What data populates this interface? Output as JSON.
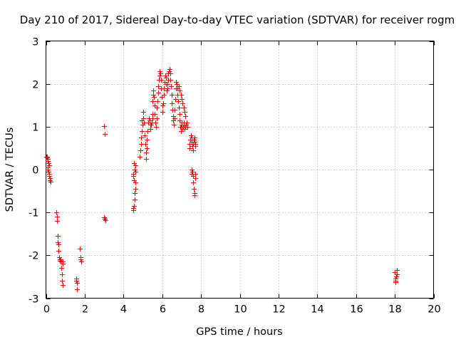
{
  "chart_data": {
    "type": "scatter",
    "title": "Day 210 of 2017, Sidereal Day-to-day VTEC variation (SDTVAR) for receiver rogm",
    "xlabel": "GPS time / hours",
    "ylabel": "SDTVAR / TECUs",
    "xlim": [
      0,
      20
    ],
    "ylim": [
      -3,
      3
    ],
    "x_ticks": [
      0,
      2,
      4,
      6,
      8,
      10,
      12,
      14,
      16,
      18,
      20
    ],
    "x_tick_labels": [
      "0",
      "2",
      "4",
      "6",
      "8",
      "10",
      "12",
      "14",
      "16",
      "18",
      "20"
    ],
    "y_ticks": [
      -3,
      -2,
      -1,
      0,
      1,
      2,
      3
    ],
    "y_tick_labels": [
      "-3",
      "-2",
      "-1",
      "0",
      "1",
      "2",
      "3"
    ],
    "grid": true,
    "marker": "+",
    "series": [
      {
        "name": "SDTVAR",
        "color": "#ff0000",
        "points": [
          [
            0.0,
            0.3
          ],
          [
            0.05,
            0.3
          ],
          [
            0.08,
            0.25
          ],
          [
            0.1,
            0.2
          ],
          [
            0.12,
            0.15
          ],
          [
            0.15,
            0.1
          ],
          [
            0.08,
            0.05
          ],
          [
            0.1,
            0.0
          ],
          [
            0.12,
            -0.05
          ],
          [
            0.15,
            -0.1
          ],
          [
            0.18,
            -0.15
          ],
          [
            0.2,
            -0.2
          ],
          [
            0.22,
            -0.25
          ],
          [
            0.25,
            -0.28
          ],
          [
            0.05,
            0.28
          ],
          [
            0.18,
            0.1
          ],
          [
            0.55,
            -1.0
          ],
          [
            0.57,
            -1.1
          ],
          [
            0.58,
            -1.2
          ],
          [
            0.6,
            -1.55
          ],
          [
            0.62,
            -1.7
          ],
          [
            0.64,
            -1.75
          ],
          [
            0.66,
            -1.9
          ],
          [
            0.68,
            -2.05
          ],
          [
            0.7,
            -2.1
          ],
          [
            0.72,
            -2.12
          ],
          [
            0.75,
            -2.1
          ],
          [
            0.78,
            -2.15
          ],
          [
            0.8,
            -2.3
          ],
          [
            0.82,
            -2.45
          ],
          [
            0.84,
            -2.6
          ],
          [
            0.86,
            -2.7
          ],
          [
            0.88,
            -2.2
          ],
          [
            0.85,
            -2.15
          ],
          [
            1.55,
            -2.55
          ],
          [
            1.57,
            -2.6
          ],
          [
            1.6,
            -2.65
          ],
          [
            1.6,
            -2.8
          ],
          [
            1.75,
            -1.85
          ],
          [
            1.78,
            -2.05
          ],
          [
            1.8,
            -2.1
          ],
          [
            1.82,
            -2.15
          ],
          [
            3.0,
            1.02
          ],
          [
            3.02,
            0.83
          ],
          [
            3.0,
            -1.12
          ],
          [
            3.04,
            -1.15
          ],
          [
            3.06,
            -1.18
          ],
          [
            4.5,
            -0.9
          ],
          [
            4.52,
            -0.95
          ],
          [
            4.54,
            -0.85
          ],
          [
            4.56,
            -0.7
          ],
          [
            4.58,
            -0.55
          ],
          [
            4.6,
            -0.45
          ],
          [
            4.55,
            -0.25
          ],
          [
            4.52,
            -0.15
          ],
          [
            4.5,
            -0.1
          ],
          [
            4.58,
            0.0
          ],
          [
            4.6,
            0.1
          ],
          [
            4.55,
            0.15
          ],
          [
            4.62,
            -0.05
          ],
          [
            4.6,
            -0.3
          ],
          [
            4.85,
            0.3
          ],
          [
            4.88,
            0.45
          ],
          [
            4.9,
            0.6
          ],
          [
            4.92,
            0.75
          ],
          [
            4.95,
            0.9
          ],
          [
            4.97,
            1.05
          ],
          [
            5.0,
            1.2
          ],
          [
            5.02,
            1.35
          ],
          [
            4.95,
            1.15
          ],
          [
            5.05,
            1.1
          ],
          [
            5.1,
            0.8
          ],
          [
            5.12,
            0.6
          ],
          [
            5.15,
            0.4
          ],
          [
            5.18,
            0.25
          ],
          [
            5.2,
            0.5
          ],
          [
            5.22,
            0.7
          ],
          [
            5.25,
            0.9
          ],
          [
            5.28,
            1.1
          ],
          [
            5.3,
            1.2
          ],
          [
            5.35,
            1.15
          ],
          [
            5.38,
            1.05
          ],
          [
            5.4,
            0.95
          ],
          [
            5.42,
            1.05
          ],
          [
            5.45,
            1.1
          ],
          [
            5.48,
            1.2
          ],
          [
            5.5,
            1.3
          ],
          [
            5.5,
            1.6
          ],
          [
            5.52,
            1.75
          ],
          [
            5.55,
            1.85
          ],
          [
            5.58,
            1.7
          ],
          [
            5.6,
            1.5
          ],
          [
            5.62,
            1.3
          ],
          [
            5.65,
            1.1
          ],
          [
            5.68,
            1.0
          ],
          [
            5.7,
            1.2
          ],
          [
            5.72,
            1.45
          ],
          [
            5.75,
            1.6
          ],
          [
            5.78,
            1.8
          ],
          [
            5.8,
            1.95
          ],
          [
            5.82,
            2.1
          ],
          [
            5.85,
            2.2
          ],
          [
            5.88,
            2.3
          ],
          [
            5.9,
            2.25
          ],
          [
            5.92,
            2.1
          ],
          [
            5.95,
            1.9
          ],
          [
            5.97,
            1.7
          ],
          [
            6.0,
            1.5
          ],
          [
            6.02,
            1.35
          ],
          [
            6.05,
            1.55
          ],
          [
            6.08,
            1.75
          ],
          [
            6.1,
            1.9
          ],
          [
            6.12,
            2.05
          ],
          [
            6.15,
            2.2
          ],
          [
            6.18,
            2.15
          ],
          [
            6.2,
            2.0
          ],
          [
            6.22,
            1.85
          ],
          [
            6.25,
            1.9
          ],
          [
            6.28,
            2.0
          ],
          [
            6.3,
            2.1
          ],
          [
            6.32,
            2.25
          ],
          [
            6.35,
            2.3
          ],
          [
            6.38,
            2.35
          ],
          [
            6.4,
            2.25
          ],
          [
            6.42,
            2.1
          ],
          [
            6.45,
            1.95
          ],
          [
            6.48,
            1.75
          ],
          [
            6.5,
            1.55
          ],
          [
            6.52,
            1.4
          ],
          [
            6.55,
            1.25
          ],
          [
            6.58,
            1.15
          ],
          [
            6.6,
            1.05
          ],
          [
            6.62,
            1.2
          ],
          [
            6.65,
            1.4
          ],
          [
            6.68,
            1.65
          ],
          [
            6.7,
            1.9
          ],
          [
            6.72,
            2.05
          ],
          [
            6.75,
            2.0
          ],
          [
            6.78,
            1.9
          ],
          [
            6.8,
            1.75
          ],
          [
            6.82,
            1.6
          ],
          [
            6.85,
            1.45
          ],
          [
            6.88,
            1.3
          ],
          [
            6.9,
            1.15
          ],
          [
            6.92,
            1.0
          ],
          [
            6.95,
            0.9
          ],
          [
            6.98,
            1.0
          ],
          [
            7.0,
            1.1
          ],
          [
            7.02,
            1.05
          ],
          [
            7.05,
            0.95
          ],
          [
            7.08,
            1.0
          ],
          [
            7.1,
            1.1
          ],
          [
            7.12,
            1.05
          ],
          [
            7.15,
            0.95
          ],
          [
            7.18,
            1.0
          ],
          [
            6.85,
            1.95
          ],
          [
            6.9,
            1.85
          ],
          [
            6.95,
            1.75
          ],
          [
            7.0,
            1.65
          ],
          [
            7.05,
            1.55
          ],
          [
            7.1,
            1.45
          ],
          [
            7.15,
            1.35
          ],
          [
            7.2,
            1.25
          ],
          [
            7.25,
            1.1
          ],
          [
            7.3,
            1.0
          ],
          [
            7.22,
            1.05
          ],
          [
            7.4,
            0.5
          ],
          [
            7.42,
            0.6
          ],
          [
            7.45,
            0.7
          ],
          [
            7.48,
            0.8
          ],
          [
            7.5,
            0.75
          ],
          [
            7.52,
            0.65
          ],
          [
            7.55,
            0.55
          ],
          [
            7.58,
            0.45
          ],
          [
            7.6,
            0.6
          ],
          [
            7.62,
            0.7
          ],
          [
            7.65,
            0.75
          ],
          [
            7.68,
            0.65
          ],
          [
            7.7,
            0.55
          ],
          [
            7.72,
            0.6
          ],
          [
            7.5,
            0.0
          ],
          [
            7.52,
            -0.1
          ],
          [
            7.55,
            -0.05
          ],
          [
            7.58,
            -0.15
          ],
          [
            7.6,
            -0.3
          ],
          [
            7.62,
            -0.45
          ],
          [
            7.65,
            -0.55
          ],
          [
            7.68,
            -0.6
          ],
          [
            7.7,
            -0.1
          ],
          [
            7.72,
            -0.2
          ],
          [
            18.0,
            -2.4
          ],
          [
            18.02,
            -2.55
          ],
          [
            18.05,
            -2.6
          ],
          [
            18.08,
            -2.5
          ],
          [
            18.1,
            -2.45
          ],
          [
            18.12,
            -2.35
          ],
          [
            18.05,
            -2.62
          ]
        ]
      }
    ]
  }
}
